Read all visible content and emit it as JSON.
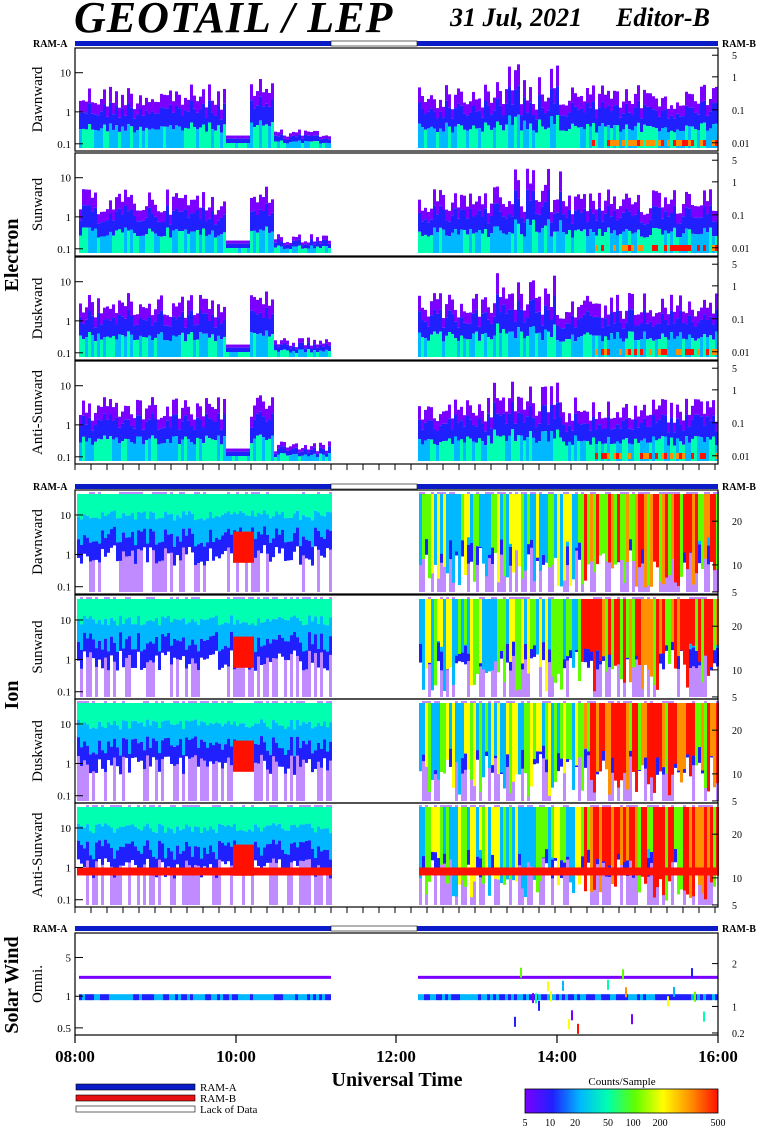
{
  "header": {
    "title": "GEOTAIL / LEP",
    "date": "31 Jul, 2021",
    "editor": "Editor-B"
  },
  "ram_labels": {
    "left": "RAM-A",
    "right": "RAM-B"
  },
  "groups": [
    {
      "name": "Electron",
      "panels": [
        "Dawnward",
        "Sunward",
        "Duskward",
        "Anti-Sunward"
      ],
      "left_ticks": [
        "10",
        "1",
        "0.1"
      ],
      "right_ticks": [
        "5",
        "1",
        "0.1",
        "0.01"
      ]
    },
    {
      "name": "Ion",
      "panels": [
        "Dawnward",
        "Sunward",
        "Duskward",
        "Anti-Sunward"
      ],
      "left_ticks": [
        "10",
        "1",
        "0.1"
      ],
      "right_ticks": [
        "20",
        "10",
        "5"
      ]
    },
    {
      "name": "Solar Wind",
      "panels": [
        "Omni."
      ],
      "left_ticks": [
        "5",
        "1",
        "0.5"
      ],
      "right_ticks": [
        "2",
        "1",
        "0.2"
      ]
    }
  ],
  "x_axis": {
    "label": "Universal Time",
    "ticks": [
      "08:00",
      "10:00",
      "12:00",
      "14:00",
      "16:00"
    ]
  },
  "legend": {
    "items": [
      {
        "label": "RAM-A",
        "color": "#0a1cc8"
      },
      {
        "label": "RAM-B",
        "color": "#e81010"
      },
      {
        "label": "Lack of Data",
        "color": "#ffffff"
      }
    ]
  },
  "colorbar": {
    "title": "Counts/Sample",
    "ticks": [
      "5",
      "10",
      "20",
      "50",
      "100",
      "200",
      "500"
    ],
    "colors": [
      "#7a00ff",
      "#2020ff",
      "#00b8ff",
      "#00ffb0",
      "#60ff00",
      "#ffff00",
      "#ff9000",
      "#ff1000"
    ]
  },
  "chart_data": {
    "type": "heatmap",
    "title": "GEOTAIL / LEP",
    "xlabel": "Universal Time",
    "x_range": [
      "08:00",
      "16:00"
    ],
    "data_gap": [
      "11:10",
      "12:15"
    ],
    "colorbar_range": [
      5,
      500
    ],
    "colorbar_label": "Counts/Sample"
  }
}
